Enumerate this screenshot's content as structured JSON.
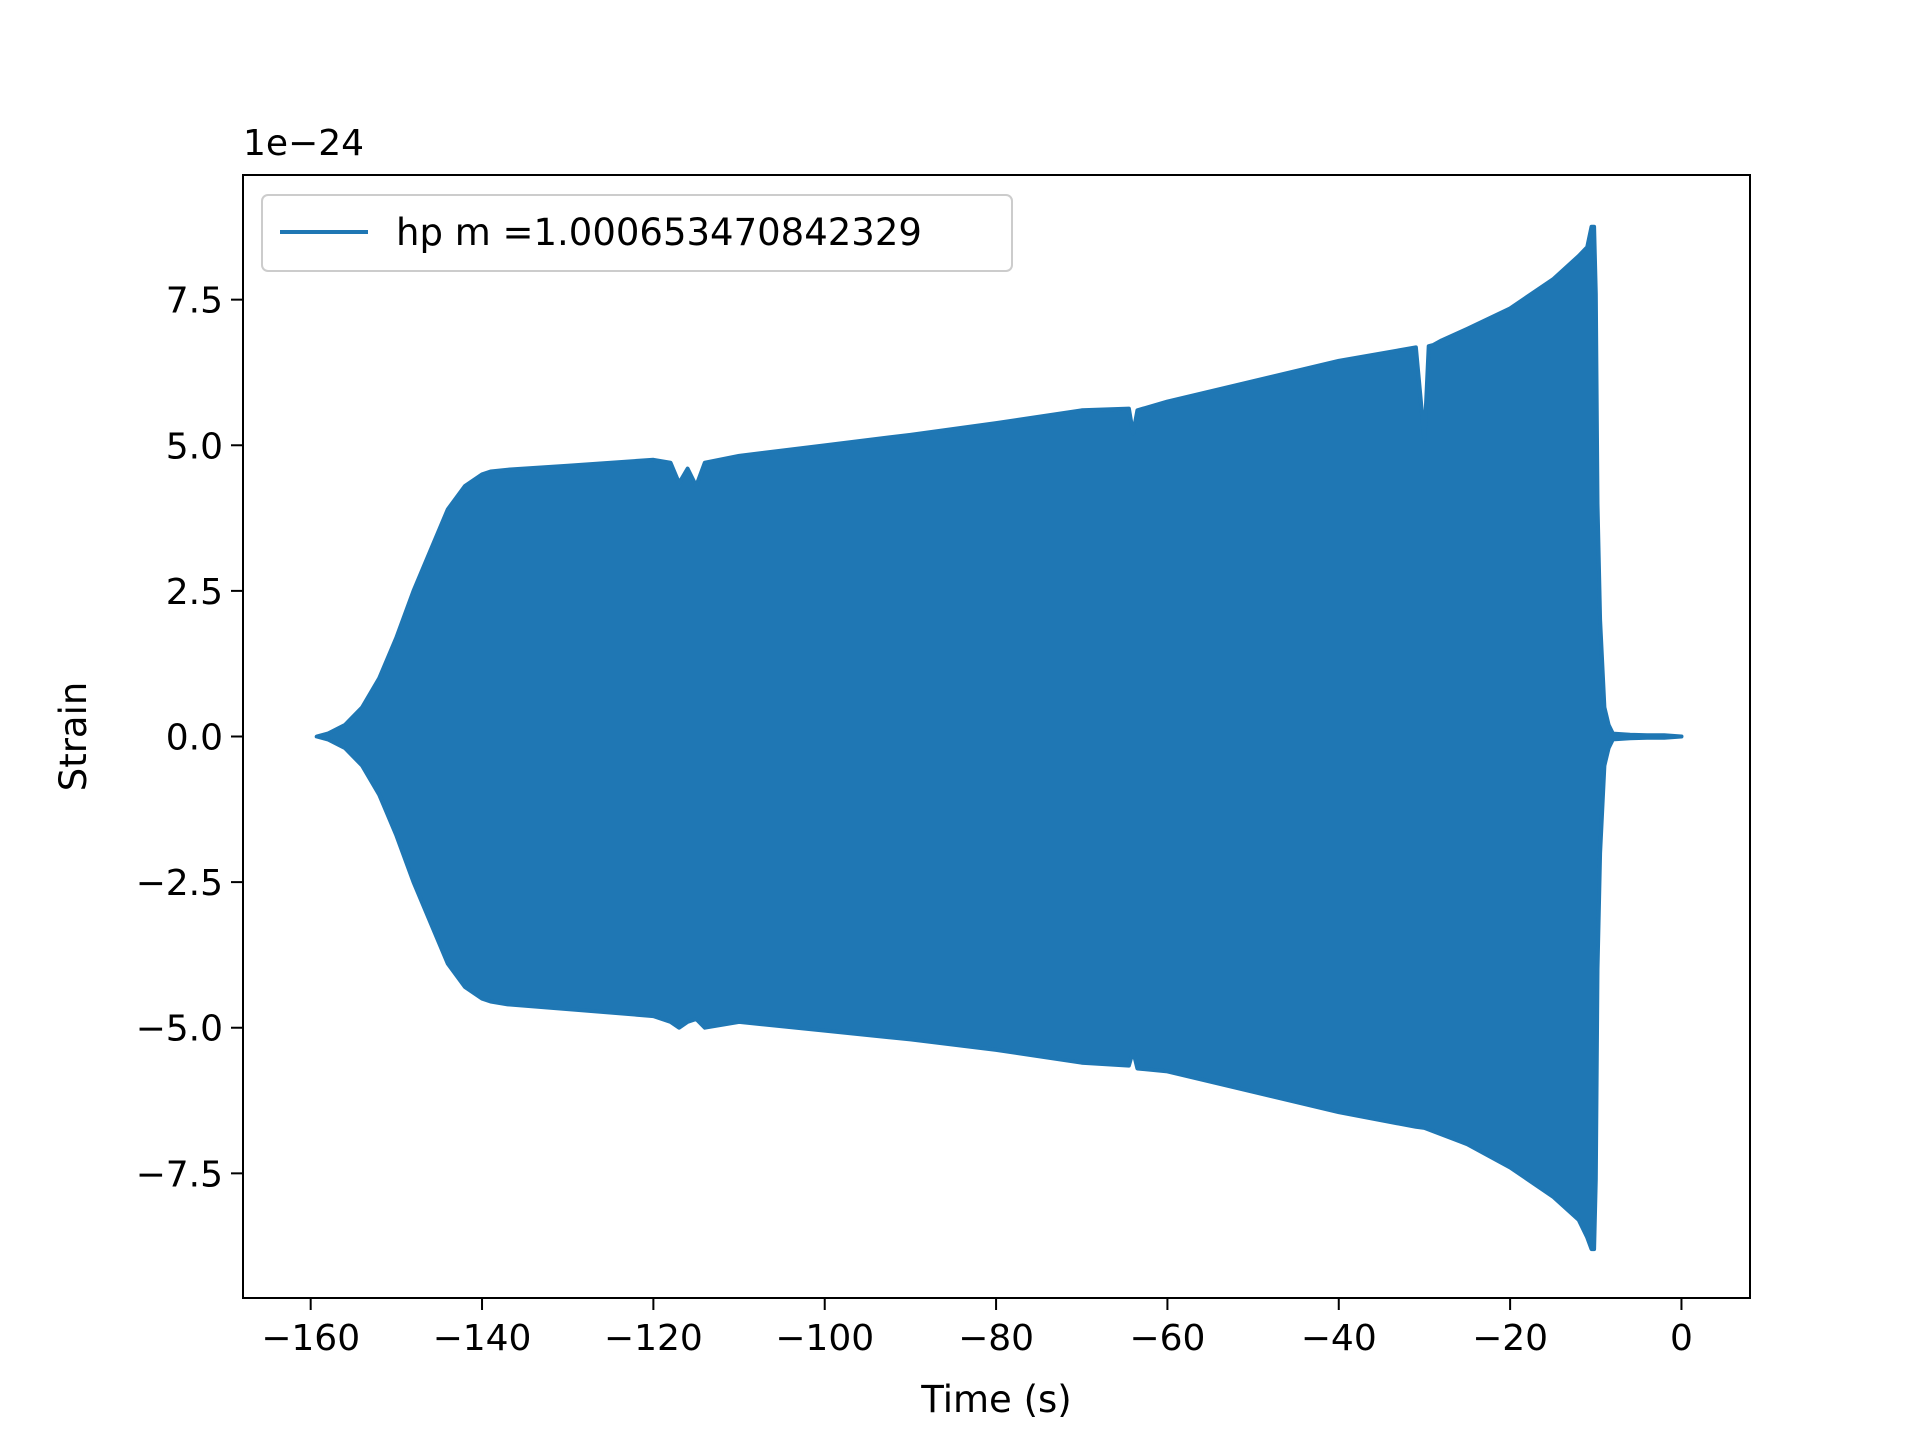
{
  "chart_data": {
    "type": "line",
    "title": "",
    "xlabel": "Time (s)",
    "ylabel": "Strain",
    "y_offset_label": "1e−24",
    "xlim": [
      -167.9,
      8.0
    ],
    "ylim": [
      -9.64,
      9.64
    ],
    "x_ticks": [
      -160,
      -140,
      -120,
      -100,
      -80,
      -60,
      -40,
      -20,
      0
    ],
    "x_tick_labels": [
      "−160",
      "−140",
      "−120",
      "−100",
      "−80",
      "−60",
      "−40",
      "−20",
      "0"
    ],
    "y_ticks": [
      -7.5,
      -5.0,
      -2.5,
      0.0,
      2.5,
      5.0,
      7.5
    ],
    "y_tick_labels": [
      "−7.5",
      "−5.0",
      "−2.5",
      "0.0",
      "2.5",
      "5.0",
      "7.5"
    ],
    "grid": false,
    "legend_position": "top-left",
    "series": [
      {
        "name": "hp m =1.000653470842329",
        "color": "#1f77b4",
        "envelope_upper": {
          "x": [
            -159.3,
            -158.0,
            -156.0,
            -154.0,
            -152.0,
            -150.0,
            -148.0,
            -146.0,
            -144.0,
            -142.0,
            -140.0,
            -139.0,
            -137.0,
            -130.0,
            -120.0,
            -118.0,
            -117.0,
            -116.0,
            -115.0,
            -114.0,
            -110.0,
            -100.0,
            -90.0,
            -80.0,
            -70.0,
            -64.5,
            -64.0,
            -63.5,
            -60.0,
            -50.0,
            -40.0,
            -31.0,
            -30.0,
            -29.5,
            -29.0,
            -28.0,
            -25.0,
            -20.0,
            -15.0,
            -12.0,
            -11.0,
            -10.5,
            -10.2,
            -10.0,
            -9.8,
            -9.5,
            -9.0,
            -8.5,
            -8.0,
            -6.0,
            -4.0,
            -2.0,
            0.0
          ],
          "y": [
            0.0,
            0.05,
            0.2,
            0.5,
            1.0,
            1.7,
            2.5,
            3.2,
            3.9,
            4.3,
            4.5,
            4.55,
            4.58,
            4.65,
            4.75,
            4.7,
            4.35,
            4.6,
            4.3,
            4.7,
            4.82,
            5.0,
            5.18,
            5.38,
            5.6,
            5.63,
            5.2,
            5.6,
            5.75,
            6.1,
            6.45,
            6.68,
            5.1,
            6.7,
            6.72,
            6.8,
            7.0,
            7.35,
            7.85,
            8.25,
            8.4,
            8.75,
            8.75,
            7.6,
            4.0,
            2.0,
            0.5,
            0.2,
            0.05,
            0.03,
            0.02,
            0.02,
            0.0
          ]
        },
        "envelope_lower": {
          "x": [
            -159.3,
            -158.0,
            -156.0,
            -154.0,
            -152.0,
            -150.0,
            -148.0,
            -146.0,
            -144.0,
            -142.0,
            -140.0,
            -139.0,
            -137.0,
            -130.0,
            -120.0,
            -118.0,
            -117.0,
            -116.0,
            -115.0,
            -114.0,
            -110.0,
            -100.0,
            -90.0,
            -80.0,
            -70.0,
            -64.5,
            -64.0,
            -63.5,
            -60.0,
            -50.0,
            -40.0,
            -31.0,
            -30.0,
            -25.0,
            -20.0,
            -15.0,
            -12.0,
            -11.0,
            -10.5,
            -10.2,
            -10.0,
            -9.8,
            -9.5,
            -9.0,
            -8.5,
            -8.0,
            -6.0,
            -4.0,
            -2.0,
            0.0
          ],
          "y": [
            0.0,
            -0.05,
            -0.2,
            -0.5,
            -1.0,
            -1.7,
            -2.5,
            -3.2,
            -3.9,
            -4.3,
            -4.5,
            -4.55,
            -4.6,
            -4.68,
            -4.8,
            -4.9,
            -5.0,
            -4.9,
            -4.85,
            -5.0,
            -4.9,
            -5.05,
            -5.2,
            -5.38,
            -5.6,
            -5.65,
            -5.4,
            -5.7,
            -5.75,
            -6.1,
            -6.45,
            -6.7,
            -6.72,
            -7.0,
            -7.4,
            -7.9,
            -8.3,
            -8.6,
            -8.8,
            -8.8,
            -7.6,
            -4.0,
            -2.0,
            -0.5,
            -0.2,
            -0.05,
            -0.03,
            -0.02,
            -0.02,
            0.0
          ]
        }
      }
    ]
  }
}
